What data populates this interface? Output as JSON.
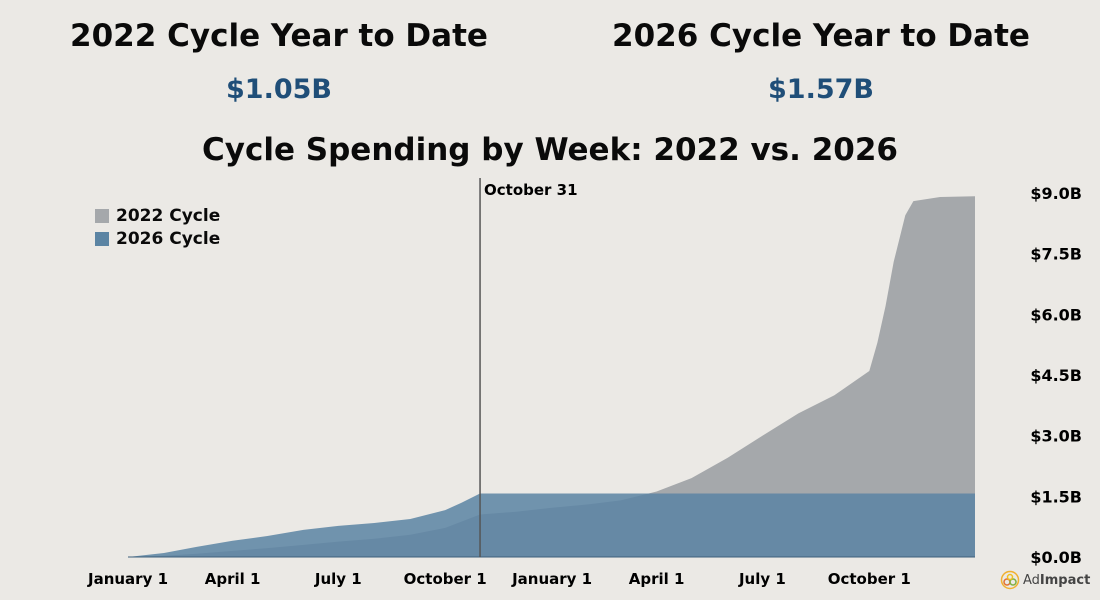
{
  "header": {
    "left_title": "2022 Cycle Year to Date",
    "left_value": "$1.05B",
    "right_title": "2026 Cycle Year to Date",
    "right_value": "$1.57B"
  },
  "logo": {
    "text_a": "Ad",
    "text_b": "Impact"
  },
  "chart_data": {
    "type": "area",
    "title": "Cycle Spending by Week: 2022 vs. 2026",
    "xlabel": "",
    "ylabel": "",
    "x_ticks": [
      {
        "date": "2021-01-01",
        "label": "January 1"
      },
      {
        "date": "2021-04-01",
        "label": "April 1"
      },
      {
        "date": "2021-07-01",
        "label": "July 1"
      },
      {
        "date": "2021-10-01",
        "label": "October 1"
      },
      {
        "date": "2022-01-01",
        "label": "January 1"
      },
      {
        "date": "2022-04-01",
        "label": "April 1"
      },
      {
        "date": "2022-07-01",
        "label": "July 1"
      },
      {
        "date": "2022-10-01",
        "label": "October 1"
      }
    ],
    "xlim": [
      "2021-01-01",
      "2022-12-31"
    ],
    "ylim": [
      0,
      9
    ],
    "y_ticks": [
      {
        "v": 0,
        "label": "$0.0B"
      },
      {
        "v": 1.5,
        "label": "$1.5B"
      },
      {
        "v": 3,
        "label": "$3.0B"
      },
      {
        "v": 4.5,
        "label": "$4.5B"
      },
      {
        "v": 6,
        "label": "$6.0B"
      },
      {
        "v": 7.5,
        "label": "$7.5B"
      },
      {
        "v": 9,
        "label": "$9.0B"
      }
    ],
    "y_axis_side": "right",
    "grid": false,
    "legend_position": "top-left",
    "annotation": {
      "date": "2021-10-31",
      "label": "October 31"
    },
    "series": [
      {
        "name": "2022 Cycle",
        "color": "#a5a8ab",
        "points": [
          [
            "2021-01-01",
            0
          ],
          [
            "2021-02-01",
            0.03
          ],
          [
            "2021-03-01",
            0.08
          ],
          [
            "2021-04-01",
            0.15
          ],
          [
            "2021-05-01",
            0.22
          ],
          [
            "2021-06-01",
            0.3
          ],
          [
            "2021-07-01",
            0.38
          ],
          [
            "2021-08-01",
            0.45
          ],
          [
            "2021-09-01",
            0.55
          ],
          [
            "2021-10-01",
            0.72
          ],
          [
            "2021-10-31",
            1.05
          ],
          [
            "2021-12-01",
            1.12
          ],
          [
            "2022-01-01",
            1.22
          ],
          [
            "2022-02-01",
            1.3
          ],
          [
            "2022-03-01",
            1.4
          ],
          [
            "2022-04-01",
            1.62
          ],
          [
            "2022-05-01",
            1.95
          ],
          [
            "2022-06-01",
            2.45
          ],
          [
            "2022-07-01",
            3.0
          ],
          [
            "2022-08-01",
            3.55
          ],
          [
            "2022-09-01",
            4.0
          ],
          [
            "2022-10-01",
            4.6
          ],
          [
            "2022-10-08",
            5.3
          ],
          [
            "2022-10-15",
            6.2
          ],
          [
            "2022-10-22",
            7.3
          ],
          [
            "2022-11-01",
            8.45
          ],
          [
            "2022-11-08",
            8.8
          ],
          [
            "2022-12-01",
            8.9
          ],
          [
            "2022-12-31",
            8.92
          ]
        ]
      },
      {
        "name": "2026 Cycle",
        "color": "#5b84a3",
        "points": [
          [
            "2021-01-01",
            0
          ],
          [
            "2021-02-01",
            0.1
          ],
          [
            "2021-03-01",
            0.25
          ],
          [
            "2021-04-01",
            0.4
          ],
          [
            "2021-05-01",
            0.52
          ],
          [
            "2021-06-01",
            0.67
          ],
          [
            "2021-07-01",
            0.77
          ],
          [
            "2021-08-01",
            0.84
          ],
          [
            "2021-09-01",
            0.94
          ],
          [
            "2021-10-01",
            1.16
          ],
          [
            "2021-10-15",
            1.34
          ],
          [
            "2021-10-31",
            1.57
          ],
          [
            "2022-12-31",
            1.57
          ]
        ]
      }
    ]
  }
}
